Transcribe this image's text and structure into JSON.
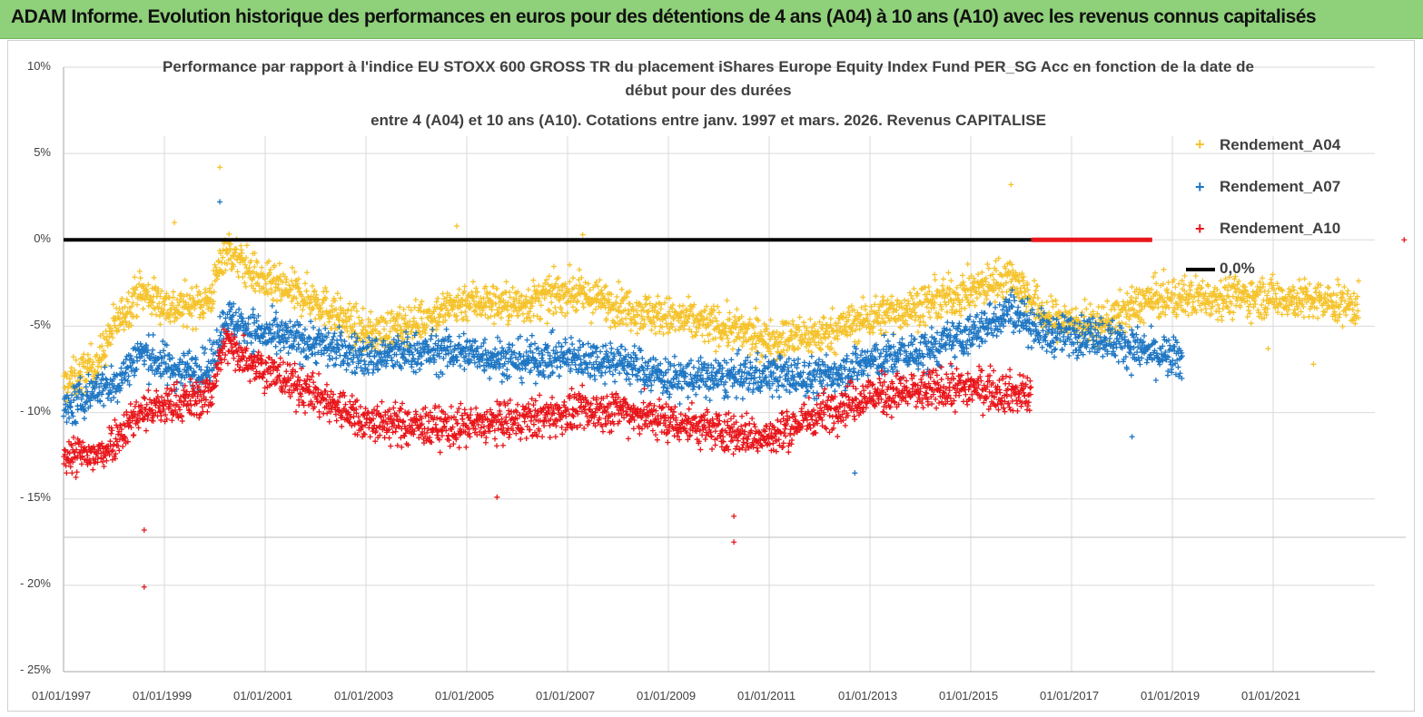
{
  "header": {
    "title": "ADAM Informe. Evolution historique des performances en euros pour des détentions de 4 ans (A04) à 10 ans (A10) avec les revenus connus capitalisés"
  },
  "chart_data": {
    "type": "scatter",
    "title_lines": [
      "Performance par rapport à l'indice EU STOXX 600 GROSS TR  du placement iShares Europe Equity Index Fund PER_SG Acc en fonction de la date de",
      "début pour des durées",
      "entre 4 (A04) et 10 ans (A10). Cotations entre janv. 1997 et mars. 2026. Revenus CAPITALISE"
    ],
    "x_ticks": [
      "01/01/1997",
      "01/01/1999",
      "01/01/2001",
      "01/01/2003",
      "01/01/2005",
      "01/01/2007",
      "01/01/2009",
      "01/01/2011",
      "01/01/2013",
      "01/01/2015",
      "01/01/2017",
      "01/01/2019",
      "01/01/2021"
    ],
    "y_ticks": [
      "10%",
      "5%",
      "0%",
      "-5%",
      "- 10%",
      "- 15%",
      "- 20%",
      "- 25%"
    ],
    "ylim": [
      -25,
      10
    ],
    "xlim_years": [
      1997.0,
      2023.6
    ],
    "legend": [
      "Rendement_A04",
      "Rendement_A07",
      "Rendement_A10",
      "0,0%"
    ],
    "colors": {
      "A04": "#f5c32c",
      "A07": "#1f77c4",
      "A10": "#e8161b",
      "zero": "#000000"
    },
    "series": [
      {
        "name": "Rendement_A04",
        "color": "#f5c32c",
        "date_range": [
          1997.0,
          2022.7
        ],
        "trend": [
          [
            1997.0,
            -8.5
          ],
          [
            1997.7,
            -7.0
          ],
          [
            1998.0,
            -5.0
          ],
          [
            1998.5,
            -3.0
          ],
          [
            1999.2,
            -4.0
          ],
          [
            1999.9,
            -3.5
          ],
          [
            2000.2,
            -0.5
          ],
          [
            2001.0,
            -2.5
          ],
          [
            2002.0,
            -3.5
          ],
          [
            2003.0,
            -5.5
          ],
          [
            2003.8,
            -5.0
          ],
          [
            2005.0,
            -3.5
          ],
          [
            2006.0,
            -3.8
          ],
          [
            2007.0,
            -3.0
          ],
          [
            2008.0,
            -3.8
          ],
          [
            2009.0,
            -4.5
          ],
          [
            2010.0,
            -5.0
          ],
          [
            2011.0,
            -5.8
          ],
          [
            2012.0,
            -5.5
          ],
          [
            2013.0,
            -4.5
          ],
          [
            2014.0,
            -3.8
          ],
          [
            2015.0,
            -3.0
          ],
          [
            2015.8,
            -2.0
          ],
          [
            2016.5,
            -4.5
          ],
          [
            2017.5,
            -5.0
          ],
          [
            2018.5,
            -3.5
          ],
          [
            2019.5,
            -3.3
          ],
          [
            2021.0,
            -3.3
          ],
          [
            2022.7,
            -3.8
          ]
        ]
      },
      {
        "name": "Rendement_A07",
        "color": "#1f77c4",
        "date_range": [
          1997.0,
          2019.2
        ],
        "trend": [
          [
            1997.0,
            -10.0
          ],
          [
            1997.7,
            -8.5
          ],
          [
            1998.0,
            -8.5
          ],
          [
            1998.5,
            -6.5
          ],
          [
            1999.2,
            -7.5
          ],
          [
            1999.9,
            -7.5
          ],
          [
            2000.2,
            -4.5
          ],
          [
            2001.0,
            -5.5
          ],
          [
            2002.0,
            -6.0
          ],
          [
            2003.0,
            -6.8
          ],
          [
            2004.0,
            -6.5
          ],
          [
            2005.0,
            -6.5
          ],
          [
            2006.0,
            -7.0
          ],
          [
            2007.0,
            -6.8
          ],
          [
            2008.0,
            -7.0
          ],
          [
            2009.0,
            -8.0
          ],
          [
            2010.0,
            -8.0
          ],
          [
            2011.0,
            -7.8
          ],
          [
            2012.0,
            -8.0
          ],
          [
            2013.0,
            -7.0
          ],
          [
            2014.0,
            -6.5
          ],
          [
            2015.0,
            -5.5
          ],
          [
            2015.8,
            -4.0
          ],
          [
            2016.5,
            -5.5
          ],
          [
            2017.5,
            -5.5
          ],
          [
            2018.5,
            -6.5
          ],
          [
            2019.2,
            -7.0
          ]
        ]
      },
      {
        "name": "Rendement_A10",
        "color": "#e8161b",
        "date_range": [
          1997.0,
          2016.2
        ],
        "trend": [
          [
            1997.0,
            -12.5
          ],
          [
            1997.7,
            -12.5
          ],
          [
            1998.0,
            -11.5
          ],
          [
            1998.5,
            -10.0
          ],
          [
            1999.2,
            -9.5
          ],
          [
            1999.9,
            -9.0
          ],
          [
            2000.2,
            -6.0
          ],
          [
            2001.0,
            -7.5
          ],
          [
            2002.0,
            -9.0
          ],
          [
            2003.0,
            -10.5
          ],
          [
            2004.0,
            -10.8
          ],
          [
            2005.0,
            -10.8
          ],
          [
            2006.0,
            -10.5
          ],
          [
            2007.0,
            -10.0
          ],
          [
            2008.0,
            -9.8
          ],
          [
            2009.0,
            -10.5
          ],
          [
            2010.0,
            -11.0
          ],
          [
            2011.0,
            -11.5
          ],
          [
            2012.0,
            -10.0
          ],
          [
            2013.0,
            -9.0
          ],
          [
            2014.0,
            -8.8
          ],
          [
            2015.0,
            -8.5
          ],
          [
            2016.2,
            -9.0
          ]
        ]
      },
      {
        "name": "0,0%",
        "color": "#000000",
        "type": "line",
        "x_years": [
          1997.0,
          2016.2
        ],
        "y": [
          0,
          0
        ]
      }
    ],
    "a10_zero_band": {
      "x_years": [
        2016.2,
        2018.6
      ],
      "y": 0
    },
    "outliers": [
      {
        "series": "A04",
        "x": 2000.1,
        "y": 4.2
      },
      {
        "series": "A04",
        "x": 2015.8,
        "y": 3.2
      },
      {
        "series": "A04",
        "x": 1999.2,
        "y": 1.0
      },
      {
        "series": "A04",
        "x": 2004.8,
        "y": 0.8
      },
      {
        "series": "A04",
        "x": 2007.3,
        "y": 0.3
      },
      {
        "series": "A04",
        "x": 2020.9,
        "y": -6.3
      },
      {
        "series": "A04",
        "x": 2021.8,
        "y": -7.2
      },
      {
        "series": "A07",
        "x": 2000.1,
        "y": 2.2
      },
      {
        "series": "A07",
        "x": 2012.7,
        "y": -13.5
      },
      {
        "series": "A07",
        "x": 2018.2,
        "y": -11.4
      },
      {
        "series": "A10",
        "x": 1998.6,
        "y": -16.8
      },
      {
        "series": "A10",
        "x": 1998.6,
        "y": -20.1
      },
      {
        "series": "A10",
        "x": 2010.3,
        "y": -16.0
      },
      {
        "series": "A10",
        "x": 2010.3,
        "y": -17.5
      },
      {
        "series": "A10",
        "x": 2005.6,
        "y": -14.9
      },
      {
        "series": "A10",
        "x": 2023.6,
        "y": 0.0
      }
    ]
  }
}
